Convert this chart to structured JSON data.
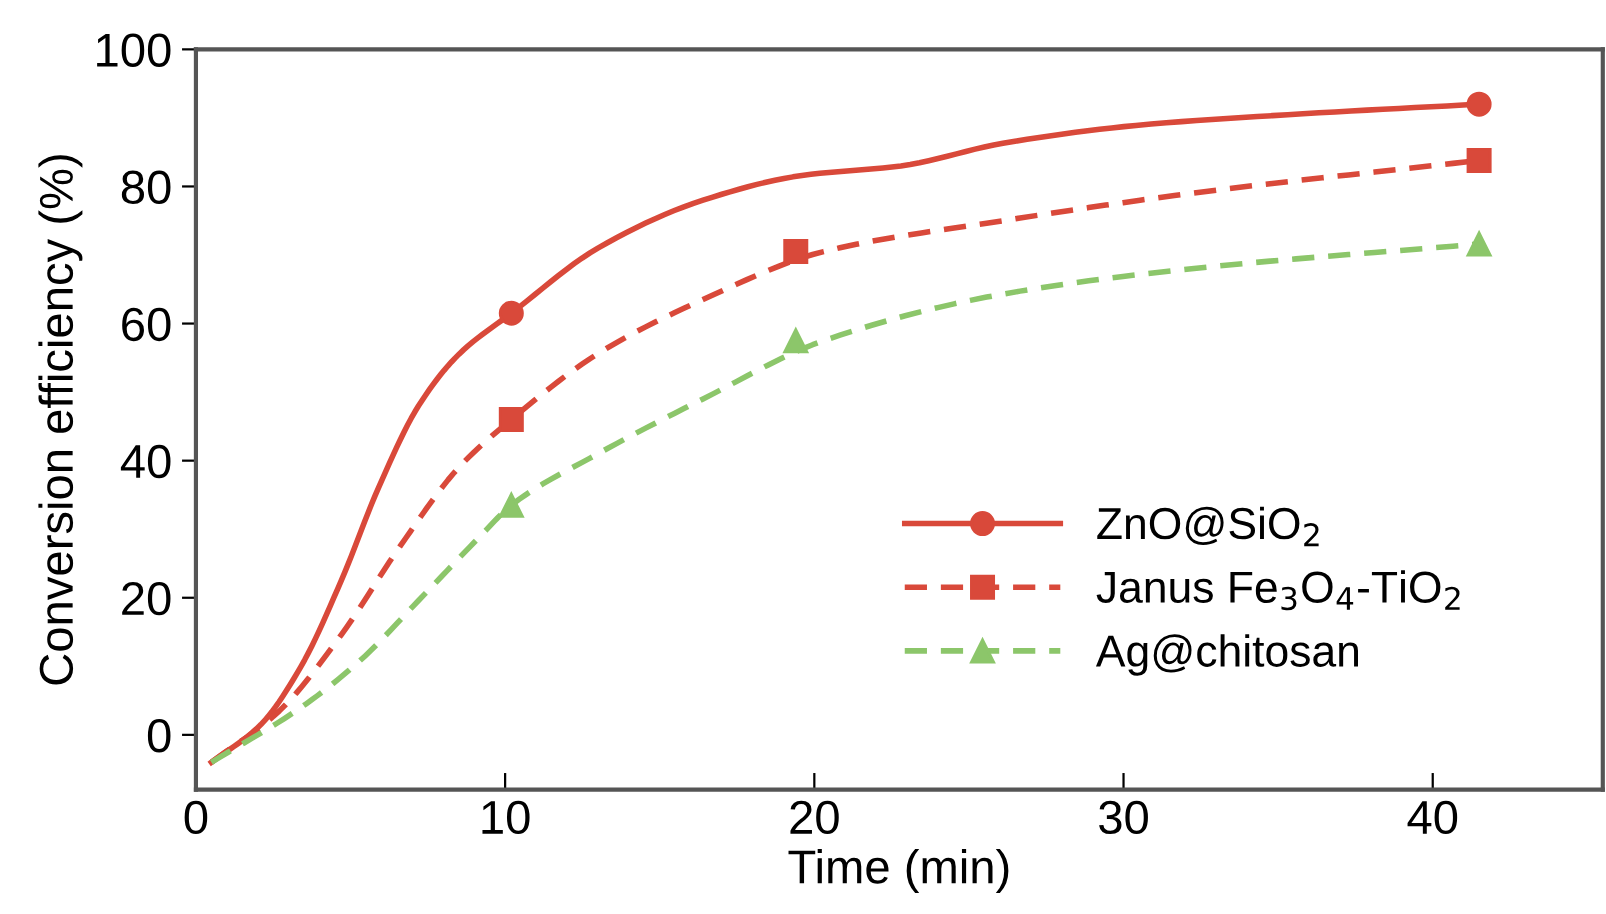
{
  "chart_data": {
    "type": "line",
    "xlabel": "Time (min)",
    "ylabel": "Conversion efficiency (%)",
    "xlim": [
      0,
      45.5
    ],
    "ylim": [
      -8,
      100
    ],
    "xticks": [
      0,
      10,
      20,
      30,
      40
    ],
    "yticks": [
      0,
      20,
      40,
      60,
      80,
      100
    ],
    "grid": false,
    "legend": "bottom right",
    "series": [
      {
        "color": "#d9493a",
        "line_style": "solid",
        "marker": "none",
        "x": [
          0.5,
          2.1,
          3.4,
          4.7,
          5.9,
          7.2,
          8.5,
          10.2,
          13,
          16.4,
          19.6,
          22.8,
          26.1,
          30.4,
          35.8,
          41.5
        ],
        "values": [
          -4,
          1.5,
          10,
          22.5,
          36,
          48,
          55.5,
          61.5,
          71,
          78,
          81.6,
          83,
          86.3,
          88.9,
          90.6,
          92
        ]
      },
      {
        "color": "#d9493a",
        "line_style": "dashed",
        "marker": "none",
        "x": [
          0.5,
          2.7,
          4.7,
          6.6,
          8.5,
          10.2,
          13,
          16.4,
          20.3,
          26.1,
          32.2,
          41.5
        ],
        "values": [
          -4,
          3.5,
          14.6,
          27.5,
          39,
          46,
          55.6,
          63.5,
          70.5,
          75,
          79,
          83.8
        ]
      },
      {
        "color": "#8cc66a",
        "line_style": "dashed",
        "marker": "none",
        "x": [
          0.5,
          3.4,
          5.3,
          7.2,
          9.2,
          10.2,
          13,
          16.4,
          20.3,
          26.1,
          32.2,
          41.5
        ],
        "values": [
          -4,
          4,
          10.8,
          19.6,
          29,
          33.5,
          41,
          49,
          57.5,
          64.3,
          68,
          71.6
        ]
      },
      {
        "type": "scatter",
        "name": "ZnO@SiO$_{2}$",
        "color": "#d9493a",
        "line_style": "solid",
        "marker": "circle",
        "x": [
          10.2,
          41.5
        ],
        "values": [
          61.5,
          92
        ]
      },
      {
        "type": "scatter",
        "name": "Janus Fe$_{3}$O$_{4}$-TiO$_{2}$",
        "color": "#d9493a",
        "line_style": "dashed",
        "marker": "square",
        "x": [
          10.2,
          19.4,
          41.5
        ],
        "values": [
          46,
          70.5,
          83.8
        ]
      },
      {
        "type": "scatter",
        "name": "Ag@chitosan",
        "color": "#8cc66a",
        "line_style": "dashed",
        "marker": "triangle",
        "x": [
          10.2,
          19.4,
          41.5
        ],
        "values": [
          33.5,
          57.5,
          71.6
        ]
      }
    ]
  }
}
